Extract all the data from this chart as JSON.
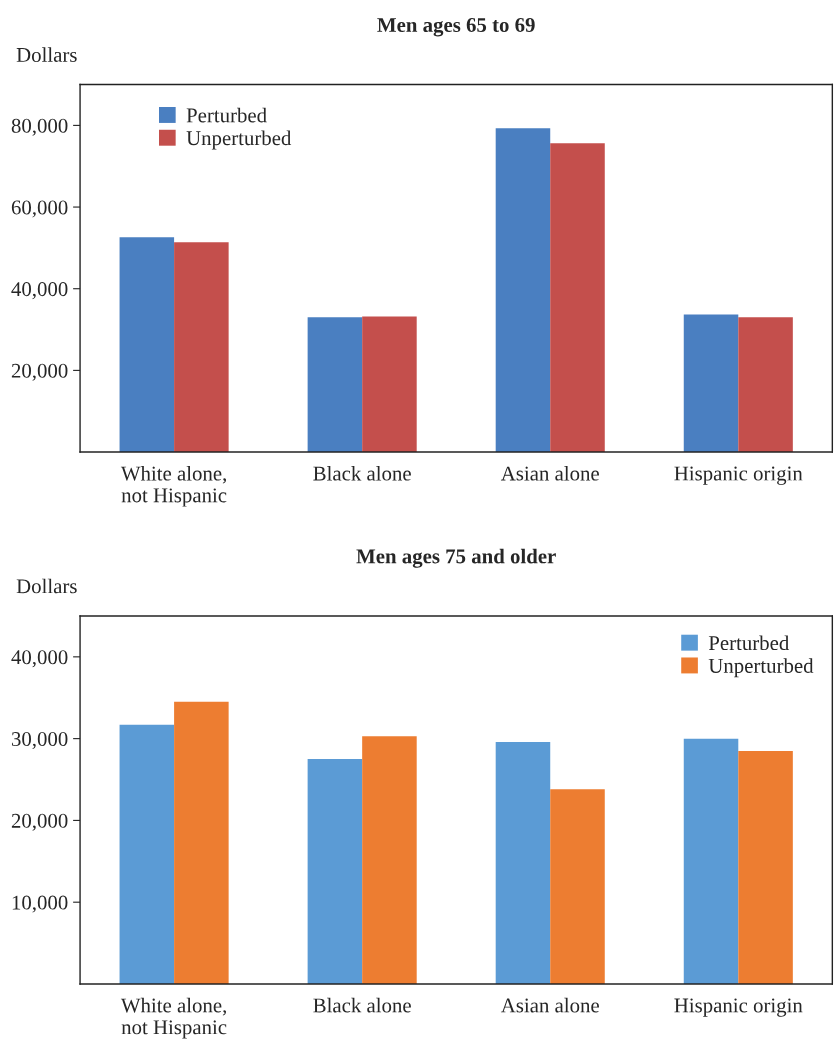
{
  "chart_data": [
    {
      "type": "bar",
      "title": "Men ages 65 to 69",
      "ylabel": "Dollars",
      "categories": [
        "White alone,\nnot Hispanic",
        "Black alone",
        "Asian alone",
        "Hispanic origin"
      ],
      "series": [
        {
          "name": "Perturbed",
          "color": "#4a7fc1",
          "values": [
            52600,
            33000,
            79300,
            33700
          ]
        },
        {
          "name": "Unperturbed",
          "color": "#c44f4c",
          "values": [
            51400,
            33200,
            75600,
            33000
          ]
        }
      ],
      "ylim": [
        0,
        90000
      ],
      "yticks": [
        {
          "value": 20000,
          "label": "20,000"
        },
        {
          "value": 40000,
          "label": "40,000"
        },
        {
          "value": 60000,
          "label": "60,000"
        },
        {
          "value": 80000,
          "label": "80,000"
        }
      ],
      "grid": false,
      "legend": "top left"
    },
    {
      "type": "bar",
      "title": "Men ages 75 and older",
      "ylabel": "Dollars",
      "categories": [
        "White alone,\nnot Hispanic",
        "Black alone",
        "Asian alone",
        "Hispanic origin"
      ],
      "series": [
        {
          "name": "Perturbed",
          "color": "#5b9bd5",
          "values": [
            31700,
            27500,
            29600,
            30000
          ]
        },
        {
          "name": "Unperturbed",
          "color": "#ed7d31",
          "values": [
            34500,
            30300,
            23800,
            28500
          ]
        }
      ],
      "ylim": [
        0,
        45000
      ],
      "yticks": [
        {
          "value": 10000,
          "label": "10,000"
        },
        {
          "value": 20000,
          "label": "20,000"
        },
        {
          "value": 30000,
          "label": "30,000"
        },
        {
          "value": 40000,
          "label": "40,000"
        }
      ],
      "grid": false,
      "legend": "top right"
    }
  ]
}
